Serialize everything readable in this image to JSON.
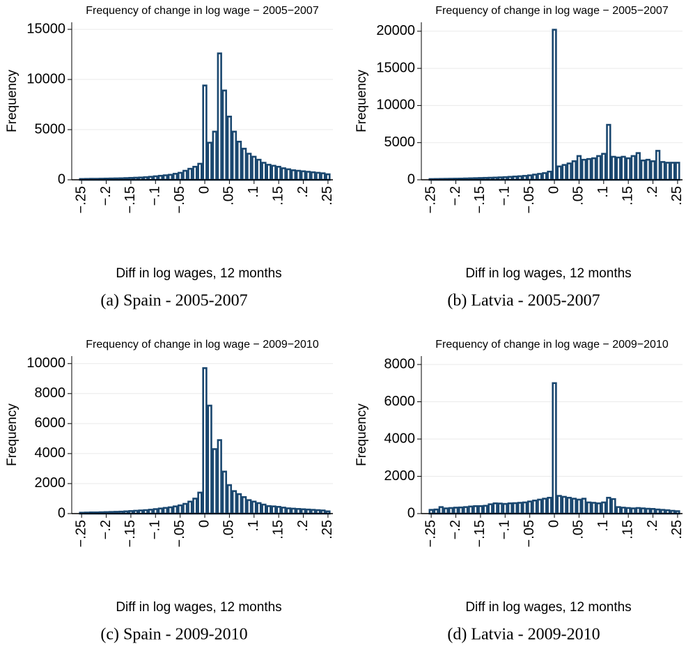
{
  "chart_data": [
    {
      "type": "histogram",
      "title": "Frequency of change in log wage − 2005−2007",
      "xlabel": "Diff in log wages, 12 months",
      "ylabel": "Frequency",
      "caption": "(a) Spain - 2005-2007",
      "color": "#1a476f",
      "grid": true,
      "bins": [
        -0.255,
        -0.245,
        -0.235,
        -0.225,
        -0.215,
        -0.205,
        -0.195,
        -0.185,
        -0.175,
        -0.165,
        -0.155,
        -0.145,
        -0.135,
        -0.125,
        -0.115,
        -0.105,
        -0.095,
        -0.085,
        -0.075,
        -0.065,
        -0.055,
        -0.045,
        -0.035,
        -0.025,
        -0.015,
        -0.005,
        0.005,
        0.015,
        0.025,
        0.035,
        0.045,
        0.055,
        0.065,
        0.075,
        0.085,
        0.095,
        0.105,
        0.115,
        0.125,
        0.135,
        0.145,
        0.155,
        0.165,
        0.175,
        0.185,
        0.195,
        0.205,
        0.215,
        0.225,
        0.235,
        0.245,
        0.255
      ],
      "values": [
        80,
        90,
        100,
        100,
        110,
        120,
        130,
        140,
        150,
        170,
        190,
        210,
        230,
        260,
        300,
        350,
        400,
        450,
        500,
        600,
        700,
        900,
        1100,
        1300,
        1600,
        9400,
        3700,
        4800,
        12600,
        8900,
        6300,
        4800,
        3800,
        3100,
        2600,
        2300,
        2000,
        1700,
        1500,
        1400,
        1300,
        1150,
        1050,
        950,
        900,
        850,
        800,
        750,
        700,
        650,
        550
      ],
      "xlim": [
        -0.27,
        0.26
      ],
      "xticks": [
        {
          "value": -0.25,
          "label": "−.25"
        },
        {
          "value": -0.2,
          "label": "−.2"
        },
        {
          "value": -0.15,
          "label": "−.15"
        },
        {
          "value": -0.1,
          "label": "−.1"
        },
        {
          "value": -0.05,
          "label": "−.05"
        },
        0,
        {
          "value": 0.05,
          "label": ".05"
        },
        {
          "value": 0.1,
          "label": ".1"
        },
        {
          "value": 0.15,
          "label": ".15"
        },
        {
          "value": 0.2,
          "label": ".2"
        },
        {
          "value": 0.25,
          "label": ".25"
        }
      ],
      "ylim": [
        0,
        15700
      ],
      "yticks": [
        0,
        5000,
        10000,
        15000
      ]
    },
    {
      "type": "histogram",
      "title": "Frequency of change in log wage − 2005−2007",
      "xlabel": "Diff in log wages, 12 months",
      "ylabel": "Frequency",
      "caption": "(b) Latvia - 2005-2007",
      "color": "#1a476f",
      "grid": true,
      "bins": [
        -0.255,
        -0.245,
        -0.235,
        -0.225,
        -0.215,
        -0.205,
        -0.195,
        -0.185,
        -0.175,
        -0.165,
        -0.155,
        -0.145,
        -0.135,
        -0.125,
        -0.115,
        -0.105,
        -0.095,
        -0.085,
        -0.075,
        -0.065,
        -0.055,
        -0.045,
        -0.035,
        -0.025,
        -0.015,
        -0.005,
        0.005,
        0.015,
        0.025,
        0.035,
        0.045,
        0.055,
        0.065,
        0.075,
        0.085,
        0.095,
        0.105,
        0.115,
        0.125,
        0.135,
        0.145,
        0.155,
        0.165,
        0.175,
        0.185,
        0.195,
        0.205,
        0.215,
        0.225,
        0.235,
        0.245,
        0.255
      ],
      "values": [
        100,
        110,
        120,
        130,
        140,
        150,
        160,
        180,
        200,
        220,
        240,
        260,
        280,
        300,
        330,
        360,
        400,
        440,
        480,
        530,
        600,
        700,
        800,
        900,
        1100,
        20200,
        1800,
        2000,
        2200,
        2500,
        3200,
        2700,
        2800,
        2900,
        3200,
        3500,
        7400,
        3100,
        3000,
        3100,
        2900,
        3200,
        3600,
        2600,
        2700,
        2500,
        3900,
        2400,
        2300,
        2300,
        2300
      ],
      "xlim": [
        -0.27,
        0.26
      ],
      "xticks": [
        {
          "value": -0.25,
          "label": "−.25"
        },
        {
          "value": -0.2,
          "label": "−.2"
        },
        {
          "value": -0.15,
          "label": "−.15"
        },
        {
          "value": -0.1,
          "label": "−.1"
        },
        {
          "value": -0.05,
          "label": "−.05"
        },
        0,
        {
          "value": 0.05,
          "label": ".05"
        },
        {
          "value": 0.1,
          "label": ".1"
        },
        {
          "value": 0.15,
          "label": ".15"
        },
        {
          "value": 0.2,
          "label": ".2"
        },
        {
          "value": 0.25,
          "label": ".25"
        }
      ],
      "ylim": [
        0,
        21200
      ],
      "yticks": [
        0,
        5000,
        10000,
        15000,
        20000
      ]
    },
    {
      "type": "histogram",
      "title": "Frequency of change in log wage − 2009−2010",
      "xlabel": "Diff in log wages, 12 months",
      "ylabel": "Frequency",
      "caption": "(c) Spain - 2009-2010",
      "color": "#1a476f",
      "grid": true,
      "bins": [
        -0.255,
        -0.245,
        -0.235,
        -0.225,
        -0.215,
        -0.205,
        -0.195,
        -0.185,
        -0.175,
        -0.165,
        -0.155,
        -0.145,
        -0.135,
        -0.125,
        -0.115,
        -0.105,
        -0.095,
        -0.085,
        -0.075,
        -0.065,
        -0.055,
        -0.045,
        -0.035,
        -0.025,
        -0.015,
        -0.005,
        0.005,
        0.015,
        0.025,
        0.035,
        0.045,
        0.055,
        0.065,
        0.075,
        0.085,
        0.095,
        0.105,
        0.115,
        0.125,
        0.135,
        0.145,
        0.155,
        0.165,
        0.175,
        0.185,
        0.195,
        0.205,
        0.215,
        0.225,
        0.235,
        0.245,
        0.255
      ],
      "values": [
        60,
        70,
        80,
        80,
        90,
        100,
        110,
        120,
        130,
        150,
        170,
        190,
        210,
        230,
        260,
        300,
        340,
        380,
        420,
        480,
        550,
        650,
        800,
        1000,
        1400,
        9700,
        7200,
        4300,
        4900,
        2800,
        1900,
        1500,
        1300,
        1100,
        900,
        800,
        700,
        600,
        500,
        480,
        450,
        400,
        350,
        330,
        310,
        290,
        270,
        250,
        230,
        210,
        150
      ],
      "xlim": [
        -0.27,
        0.26
      ],
      "xticks": [
        {
          "value": -0.25,
          "label": "−.25"
        },
        {
          "value": -0.2,
          "label": "−.2"
        },
        {
          "value": -0.15,
          "label": "−.15"
        },
        {
          "value": -0.1,
          "label": "−.1"
        },
        {
          "value": -0.05,
          "label": "−.05"
        },
        0,
        {
          "value": 0.05,
          "label": ".05"
        },
        {
          "value": 0.1,
          "label": ".1"
        },
        {
          "value": 0.15,
          "label": ".15"
        },
        {
          "value": 0.2,
          "label": ".2"
        },
        {
          "value": 0.25,
          "label": ".25"
        }
      ],
      "ylim": [
        0,
        10500
      ],
      "yticks": [
        0,
        2000,
        4000,
        6000,
        8000,
        10000
      ]
    },
    {
      "type": "histogram",
      "title": "Frequency of change in log wage − 2009−2010",
      "xlabel": "Diff in log wages, 12 months",
      "ylabel": "Frequency",
      "caption": "(d) Latvia - 2009-2010",
      "color": "#1a476f",
      "grid": true,
      "bins": [
        -0.255,
        -0.245,
        -0.235,
        -0.225,
        -0.215,
        -0.205,
        -0.195,
        -0.185,
        -0.175,
        -0.165,
        -0.155,
        -0.145,
        -0.135,
        -0.125,
        -0.115,
        -0.105,
        -0.095,
        -0.085,
        -0.075,
        -0.065,
        -0.055,
        -0.045,
        -0.035,
        -0.025,
        -0.015,
        -0.005,
        0.005,
        0.015,
        0.025,
        0.035,
        0.045,
        0.055,
        0.065,
        0.075,
        0.085,
        0.095,
        0.105,
        0.115,
        0.125,
        0.135,
        0.145,
        0.155,
        0.165,
        0.175,
        0.185,
        0.195,
        0.205,
        0.215,
        0.225,
        0.235,
        0.245,
        0.255
      ],
      "values": [
        200,
        220,
        350,
        280,
        300,
        320,
        330,
        350,
        380,
        400,
        400,
        420,
        500,
        550,
        540,
        520,
        550,
        560,
        580,
        600,
        650,
        700,
        750,
        800,
        850,
        7000,
        950,
        900,
        850,
        800,
        750,
        800,
        600,
        580,
        550,
        600,
        850,
        780,
        350,
        320,
        300,
        280,
        300,
        280,
        260,
        250,
        220,
        200,
        180,
        150,
        130
      ],
      "xlim": [
        -0.27,
        0.26
      ],
      "xticks": [
        {
          "value": -0.25,
          "label": "−.25"
        },
        {
          "value": -0.2,
          "label": "−.2"
        },
        {
          "value": -0.15,
          "label": "−.15"
        },
        {
          "value": -0.1,
          "label": "−.1"
        },
        {
          "value": -0.05,
          "label": "−.05"
        },
        0,
        {
          "value": 0.05,
          "label": ".05"
        },
        {
          "value": 0.1,
          "label": ".1"
        },
        {
          "value": 0.15,
          "label": ".15"
        },
        {
          "value": 0.2,
          "label": ".2"
        },
        {
          "value": 0.25,
          "label": ".25"
        }
      ],
      "ylim": [
        0,
        8450
      ],
      "yticks": [
        0,
        2000,
        4000,
        6000,
        8000
      ]
    }
  ]
}
